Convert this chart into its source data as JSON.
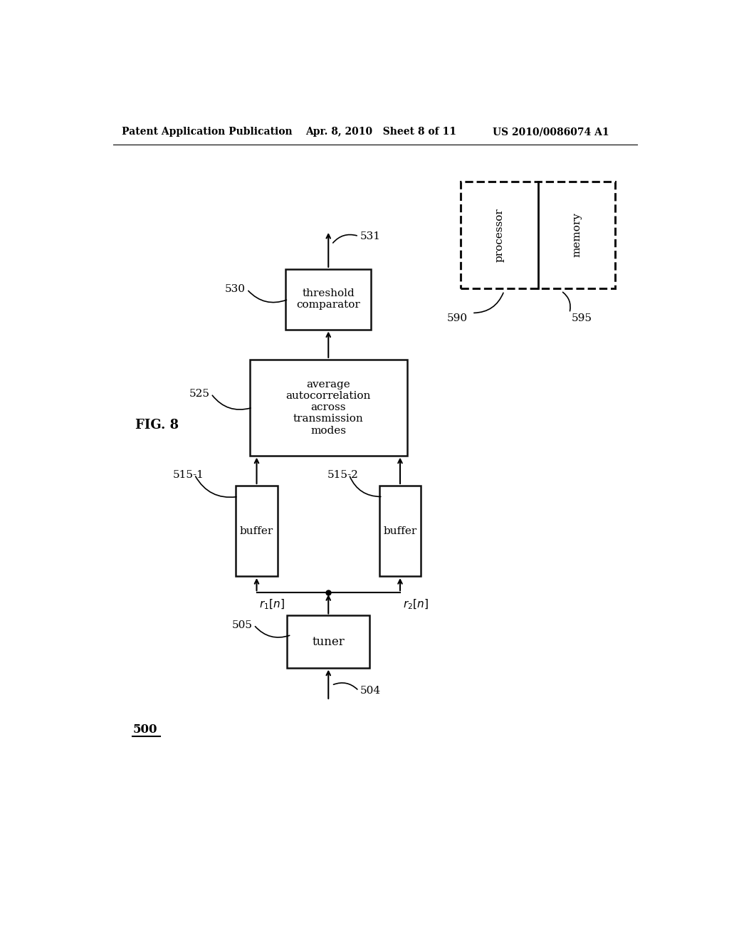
{
  "header_left": "Patent Application Publication",
  "header_mid": "Apr. 8, 2010   Sheet 8 of 11",
  "header_right": "US 2010/0086074 A1",
  "fig_label": "FIG. 8",
  "system_label": "500",
  "background_color": "#ffffff",
  "boxes": {
    "tuner": {
      "label": "tuner",
      "ref": "505"
    },
    "buffer1": {
      "label": "buffer",
      "ref": "515-1"
    },
    "buffer2": {
      "label": "buffer",
      "ref": "515-2"
    },
    "avg_auto": {
      "label": "average\nautocorrelation\nacross\ntransmission\nmodes",
      "ref": "525"
    },
    "threshold": {
      "label": "threshold\ncomparator",
      "ref": "530"
    },
    "processor": {
      "label": "processor",
      "ref": "590"
    },
    "memory": {
      "label": "memory",
      "ref": "595"
    }
  },
  "signals": {
    "input": "504",
    "output": "531",
    "r1n": "r_1[n]",
    "r2n": "r_2[n]"
  }
}
